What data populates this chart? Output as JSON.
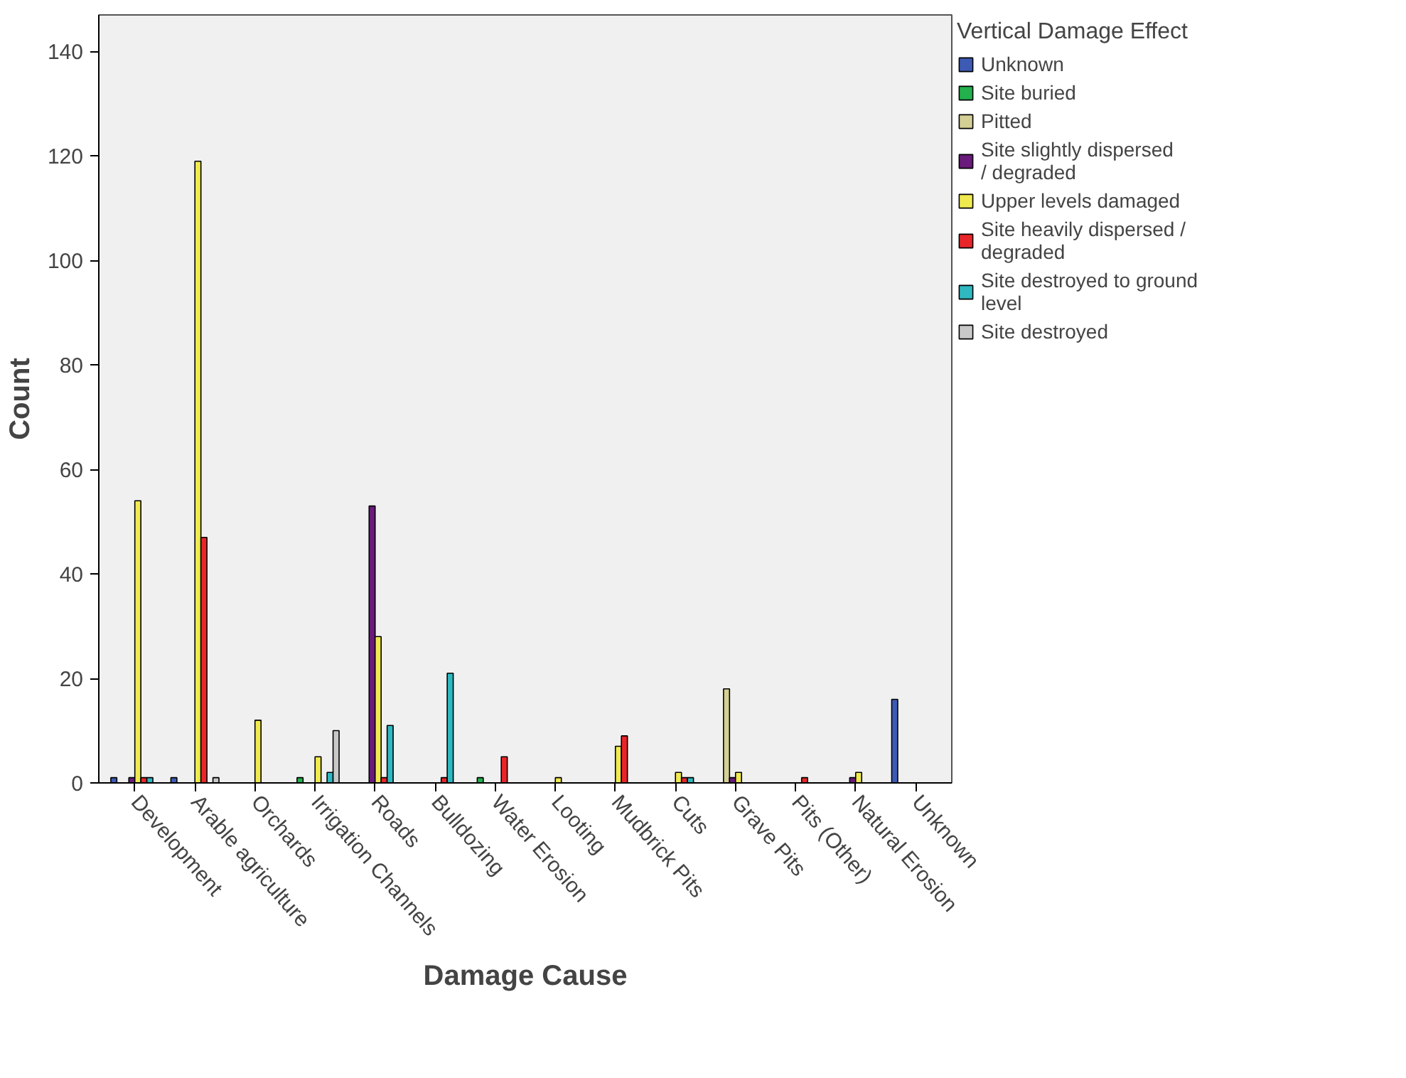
{
  "chart_data": {
    "type": "bar",
    "xlabel": "Damage Cause",
    "ylabel": "Count",
    "legend_title": "Vertical Damage Effect",
    "categories": [
      "Development",
      "Arable agriculture",
      "Orchards",
      "Irrigation Channels",
      "Roads",
      "Bulldozing",
      "Water Erosion",
      "Looting",
      "Mudbrick Pits",
      "Cuts",
      "Grave Pits",
      "Pits (Other)",
      "Natural Erosion",
      "Unknown"
    ],
    "series": [
      {
        "name": "Unknown",
        "color": "#3d5bb5",
        "values": [
          1,
          1,
          null,
          null,
          null,
          null,
          null,
          null,
          null,
          null,
          null,
          null,
          null,
          16
        ]
      },
      {
        "name": "Site buried",
        "color": "#22b14c",
        "values": [
          null,
          null,
          null,
          1,
          null,
          null,
          1,
          null,
          null,
          null,
          null,
          null,
          null,
          null
        ]
      },
      {
        "name": "Pitted",
        "color": "#d4cf94",
        "values": [
          null,
          null,
          null,
          null,
          null,
          null,
          null,
          null,
          null,
          null,
          18,
          null,
          null,
          null
        ]
      },
      {
        "name": "Site slightly dispersed / degraded",
        "color": "#6a1a7a",
        "values": [
          1,
          null,
          null,
          null,
          53,
          null,
          null,
          null,
          null,
          null,
          1,
          null,
          1,
          null
        ]
      },
      {
        "name": "Upper levels damaged",
        "color": "#f0ea50",
        "values": [
          54,
          119,
          12,
          5,
          28,
          null,
          null,
          1,
          7,
          2,
          2,
          null,
          2,
          null
        ]
      },
      {
        "name": "Site heavily dispersed / degraded",
        "color": "#e8262a",
        "values": [
          1,
          47,
          null,
          null,
          1,
          1,
          5,
          null,
          9,
          1,
          null,
          1,
          null,
          null
        ]
      },
      {
        "name": "Site destroyed to ground level",
        "color": "#30b8c0",
        "values": [
          1,
          null,
          null,
          2,
          11,
          21,
          null,
          null,
          null,
          1,
          null,
          null,
          null,
          null
        ]
      },
      {
        "name": "Site destroyed",
        "color": "#c8c8c8",
        "values": [
          null,
          1,
          null,
          10,
          null,
          null,
          null,
          null,
          null,
          null,
          null,
          null,
          null,
          null
        ]
      }
    ],
    "ylim": [
      0,
      147
    ],
    "yticks": [
      0,
      20,
      40,
      60,
      80,
      100,
      120,
      140
    ],
    "grid": false,
    "legend": "right"
  }
}
